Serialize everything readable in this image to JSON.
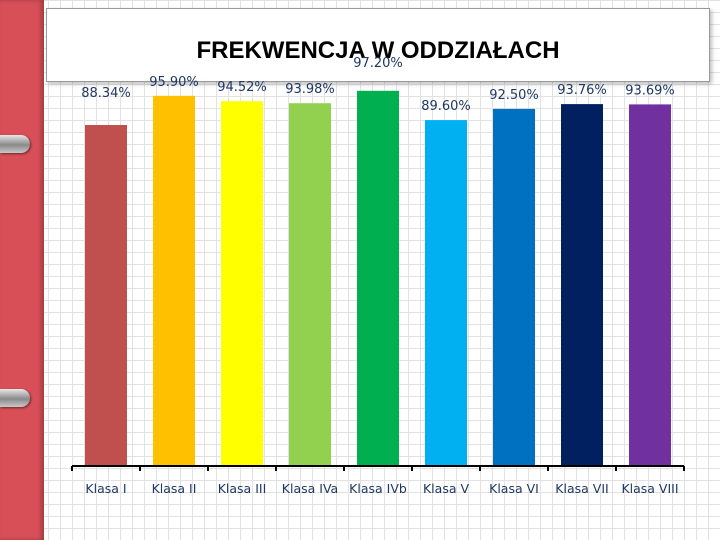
{
  "chart_data": {
    "type": "bar",
    "title": "FREKWENCJA W ODDZIAŁACH",
    "categories": [
      "Klasa I",
      "Klasa II",
      "Klasa III",
      "Klasa IVa",
      "Klasa IVb",
      "Klasa V",
      "Klasa VI",
      "Klasa VII",
      "Klasa VIII"
    ],
    "values": [
      88.34,
      95.9,
      94.52,
      93.98,
      97.2,
      89.6,
      92.5,
      93.76,
      93.69
    ],
    "labels": [
      "88.34%",
      "95.90%",
      "94.52%",
      "93.98%",
      "97.20%",
      "89.60%",
      "92.50%",
      "93.76%",
      "93.69%"
    ],
    "colors": [
      "#c0504d",
      "#ffc000",
      "#ffff00",
      "#92d050",
      "#00b050",
      "#00b0f0",
      "#0070c0",
      "#002060",
      "#7030a0"
    ],
    "xlabel": "",
    "ylabel": "",
    "ylim": [
      0,
      100
    ],
    "grid": false,
    "legend": "none"
  },
  "colors": {
    "binder": "#d84f58",
    "label_text": "#1f3864"
  }
}
